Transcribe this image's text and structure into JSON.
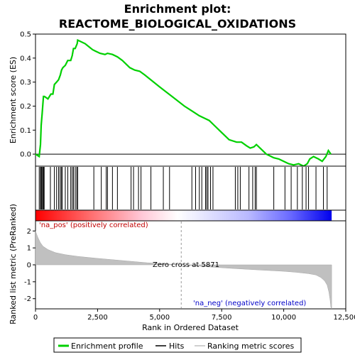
{
  "chart_data": {
    "type": "line",
    "title": "Enrichment plot:",
    "subtitle": "REACTOME_BIOLOGICAL_OXIDATIONS",
    "es_panel": {
      "ylabel": "Enrichment score (ES)",
      "ylim": [
        -0.05,
        0.5
      ],
      "yticks": [
        0.0,
        0.1,
        0.2,
        0.3,
        0.4,
        0.5
      ],
      "ytick_labels": [
        "0.0",
        "0.1",
        "0.2",
        "0.3",
        "0.4",
        "0.5"
      ],
      "x": [
        0,
        150,
        200,
        230,
        270,
        320,
        360,
        500,
        620,
        700,
        760,
        850,
        930,
        1000,
        1050,
        1100,
        1200,
        1300,
        1420,
        1480,
        1530,
        1600,
        1680,
        1700,
        2000,
        2300,
        2400,
        2600,
        2800,
        2900,
        3100,
        3300,
        3500,
        3800,
        4000,
        4200,
        4400,
        5000,
        5500,
        6000,
        6300,
        6600,
        6800,
        7000,
        7200,
        7500,
        7800,
        8100,
        8300,
        8500,
        8650,
        8800,
        8900,
        9100,
        9300,
        9600,
        9800,
        10000,
        10200,
        10400,
        10600,
        10800,
        10950,
        11050,
        11200,
        11400,
        11550,
        11700,
        11800,
        11900
      ],
      "values": [
        0.0,
        -0.01,
        0.04,
        0.12,
        0.17,
        0.24,
        0.24,
        0.23,
        0.25,
        0.25,
        0.29,
        0.3,
        0.31,
        0.33,
        0.35,
        0.36,
        0.37,
        0.39,
        0.39,
        0.41,
        0.44,
        0.44,
        0.46,
        0.475,
        0.46,
        0.435,
        0.43,
        0.42,
        0.415,
        0.42,
        0.415,
        0.405,
        0.39,
        0.36,
        0.35,
        0.345,
        0.33,
        0.28,
        0.24,
        0.2,
        0.18,
        0.16,
        0.15,
        0.14,
        0.12,
        0.09,
        0.06,
        0.05,
        0.05,
        0.035,
        0.025,
        0.03,
        0.04,
        0.02,
        0.0,
        -0.015,
        -0.02,
        -0.03,
        -0.04,
        -0.045,
        -0.04,
        -0.05,
        -0.04,
        -0.02,
        -0.01,
        -0.02,
        -0.03,
        -0.01,
        0.015,
        0.0
      ],
      "line_color": "#00d000"
    },
    "hits": {
      "positions": [
        150,
        200,
        230,
        260,
        300,
        320,
        350,
        600,
        760,
        850,
        930,
        990,
        1040,
        1080,
        1200,
        1300,
        1420,
        1480,
        1530,
        1600,
        1660,
        1700,
        2350,
        2650,
        2850,
        2900,
        3100,
        3300,
        3850,
        3950,
        4150,
        4250,
        4650,
        5150,
        5400,
        6300,
        6450,
        6600,
        6700,
        6850,
        6900,
        6950,
        7050,
        7150,
        8050,
        8150,
        8250,
        8600,
        8750,
        8850,
        8900,
        9600,
        10050,
        10300,
        10550,
        10750,
        10900,
        11000,
        11300,
        11600,
        11750
      ]
    },
    "ranked_panel": {
      "ylabel": "Ranked list metric (PreRanked)",
      "ylim": [
        -2.6,
        2.6
      ],
      "yticks": [
        -2,
        -1,
        0,
        1,
        2
      ],
      "ytick_labels": [
        "-2",
        "-1",
        "0",
        "1",
        "2"
      ],
      "x": [
        0,
        50,
        100,
        200,
        300,
        500,
        800,
        1200,
        1700,
        2500,
        3500,
        4500,
        5871,
        7000,
        8000,
        9000,
        10000,
        10500,
        11000,
        11300,
        11500,
        11650,
        11750,
        11820,
        11870,
        11900,
        11930
      ],
      "values": [
        2.0,
        1.8,
        1.6,
        1.3,
        1.1,
        0.9,
        0.72,
        0.6,
        0.5,
        0.38,
        0.25,
        0.12,
        0.0,
        -0.12,
        -0.22,
        -0.3,
        -0.38,
        -0.44,
        -0.52,
        -0.6,
        -0.75,
        -0.95,
        -1.2,
        -1.6,
        -2.1,
        -2.5,
        -2.6
      ],
      "fill_color": "#c0c0c0",
      "zero_cross_x": 5871,
      "zero_cross_label": "Zero cross at 5871",
      "pos_label": "'na_pos' (positively correlated)",
      "neg_label": "'na_neg' (negatively correlated)"
    },
    "xaxis": {
      "xlabel": "Rank in Ordered Dataset",
      "xlim": [
        0,
        12500
      ],
      "xticks": [
        0,
        2500,
        5000,
        7500,
        10000,
        12500
      ],
      "xtick_labels": [
        "0",
        "2,500",
        "5,000",
        "7,500",
        "10,000",
        "12,500"
      ],
      "n_genes": 11930
    },
    "legend": {
      "items": [
        {
          "label": "Enrichment profile",
          "color": "#00d000"
        },
        {
          "label": "Hits",
          "color": "#000000"
        },
        {
          "label": "Ranking metric scores",
          "color": "#c0c0c0"
        }
      ]
    }
  }
}
